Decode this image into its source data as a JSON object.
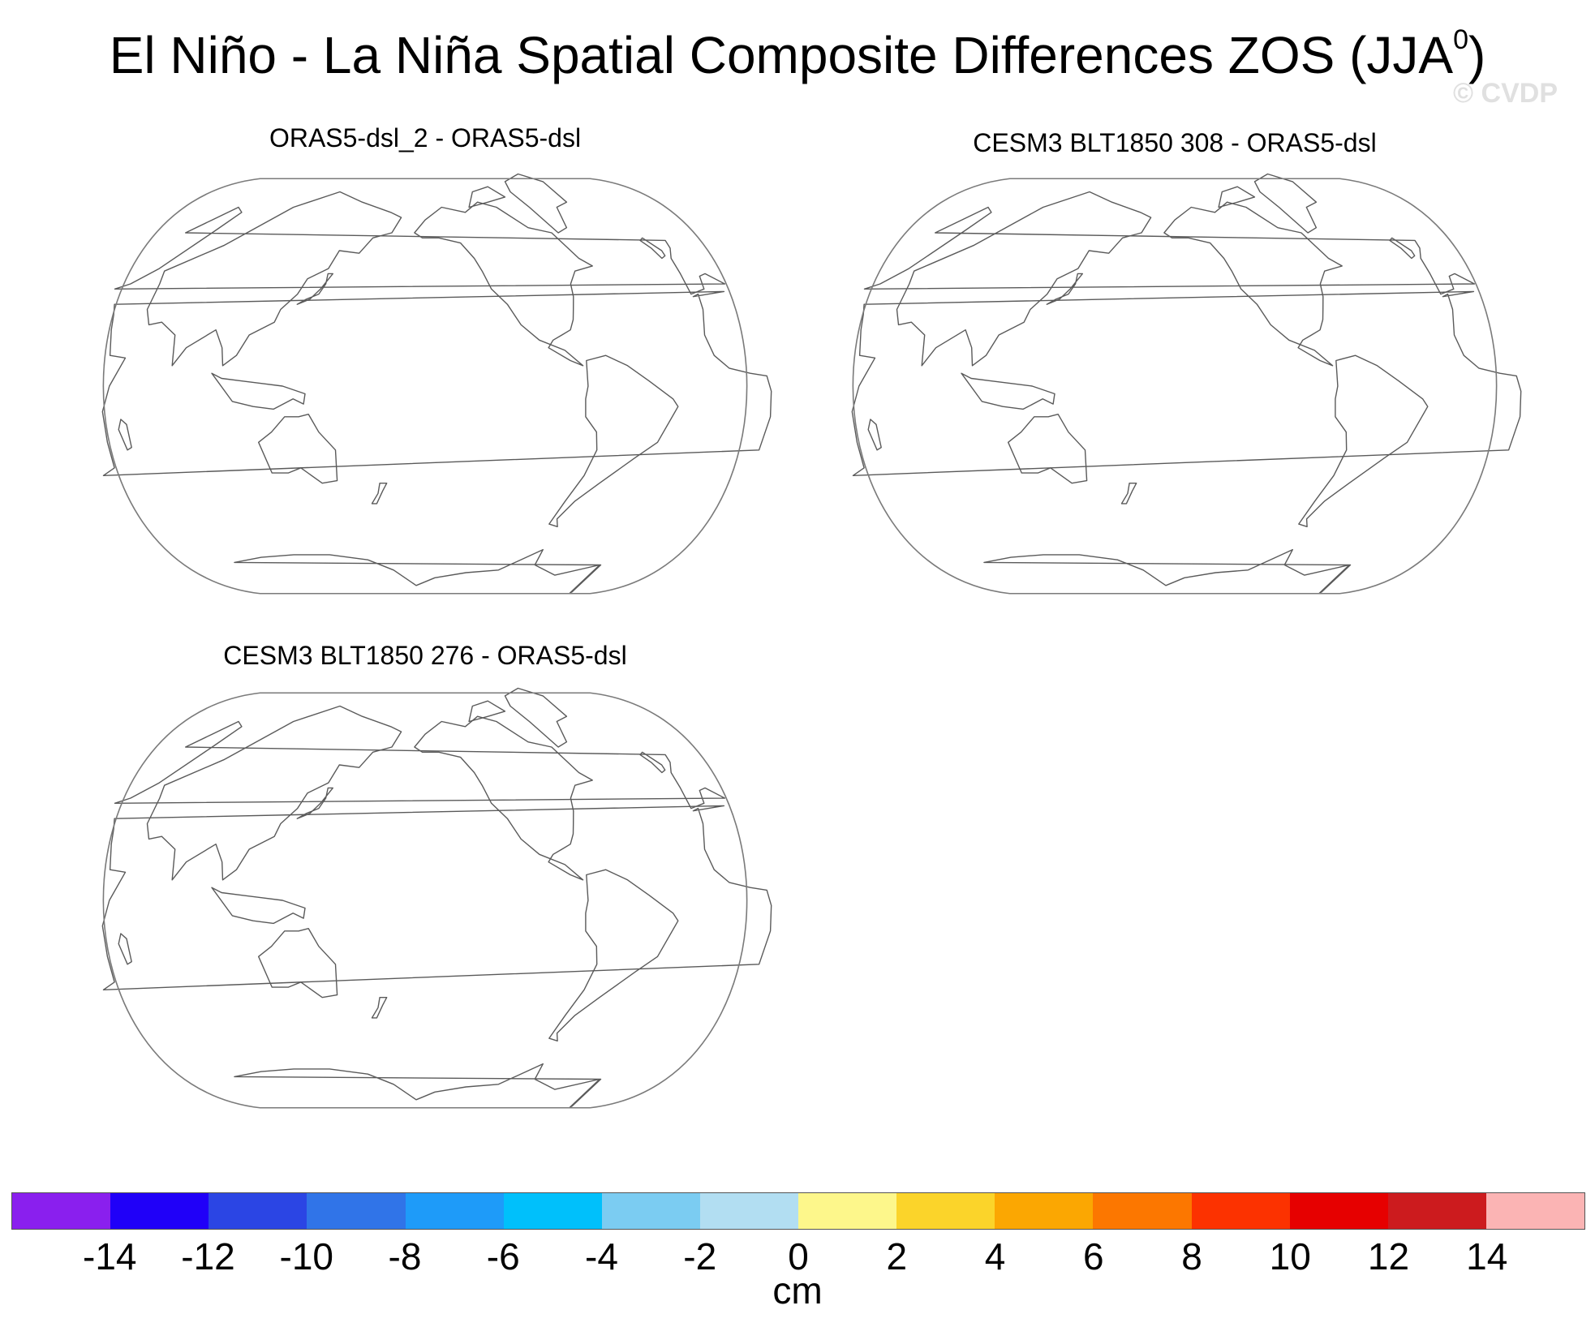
{
  "title": "El Niño - La Niña Spatial Composite Differences ZOS (JJA",
  "title_superscript": "0",
  "title_close": ")",
  "watermark": "© CVDP",
  "panels": [
    {
      "label": "ORAS5-dsl_2 - ORAS5-dsl"
    },
    {
      "label": "CESM3 BLT1850 308 - ORAS5-dsl"
    },
    {
      "label": "CESM3 BLT1850 276 - ORAS5-dsl"
    }
  ],
  "colorbar": {
    "units": "cm",
    "labels": [
      "-14",
      "-12",
      "-10",
      "-8",
      "-6",
      "-4",
      "-2",
      "0",
      "2",
      "4",
      "6",
      "8",
      "10",
      "12",
      "14"
    ],
    "colors": [
      "#8a1fee",
      "#2000f8",
      "#2b45e4",
      "#3074e8",
      "#1e9bf9",
      "#00c0fb",
      "#7bccf2",
      "#b2def2",
      "#fdf78b",
      "#fbd42a",
      "#fba702",
      "#fc7700",
      "#fc3200",
      "#e60000",
      "#cc1b1e",
      "#fbb4b4"
    ]
  },
  "map": {
    "projection": "Robinson-like",
    "center_longitude": "Pacific",
    "fill": "none (no data shown)"
  }
}
